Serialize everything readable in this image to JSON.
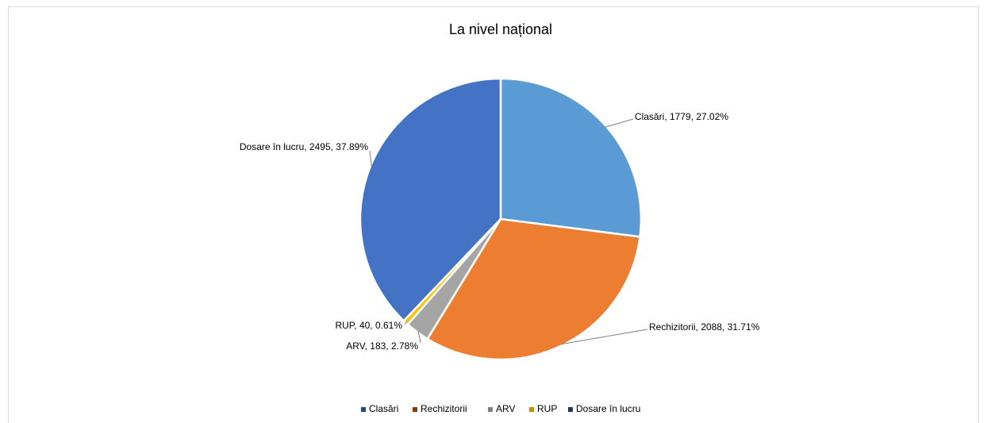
{
  "chart_data": {
    "type": "pie",
    "title": "La nivel național",
    "categories": [
      "Clasări",
      "Rechizitorii",
      "ARV",
      "RUP",
      "Dosare în lucru"
    ],
    "values": [
      1779,
      2088,
      183,
      40,
      2495
    ],
    "value_labels": [
      "Clasări, 1779, 27.02%",
      "Rechizitorii, 2088, 31.71%",
      "ARV, 183, 2.78%",
      "RUP, 40, 0.61%",
      "Dosare în lucru, 2495, 37.89%"
    ],
    "colors": [
      "#5b9bd5",
      "#ed7d31",
      "#a5a5a5",
      "#ffc000",
      "#4472c4"
    ],
    "legend_colors": [
      "#1f4e79",
      "#843c0c",
      "#7f7f7f",
      "#bf9000",
      "#203864"
    ],
    "legend": "bottom"
  }
}
